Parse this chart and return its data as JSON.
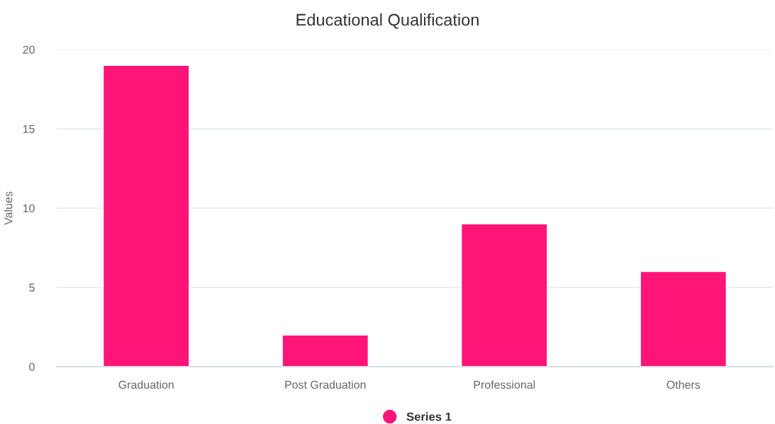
{
  "chart_data": {
    "type": "bar",
    "title": "Educational Qualification",
    "ylabel": "Values",
    "categories": [
      "Graduation",
      "Post Graduation",
      "Professional",
      "Others"
    ],
    "series": [
      {
        "name": "Series 1",
        "color": "#ff1477",
        "values": [
          19,
          2,
          9,
          6
        ]
      }
    ],
    "ylim": [
      0,
      20
    ],
    "yticks": [
      0,
      5,
      10,
      15,
      20
    ],
    "grid": "y",
    "legend": "bottom"
  }
}
